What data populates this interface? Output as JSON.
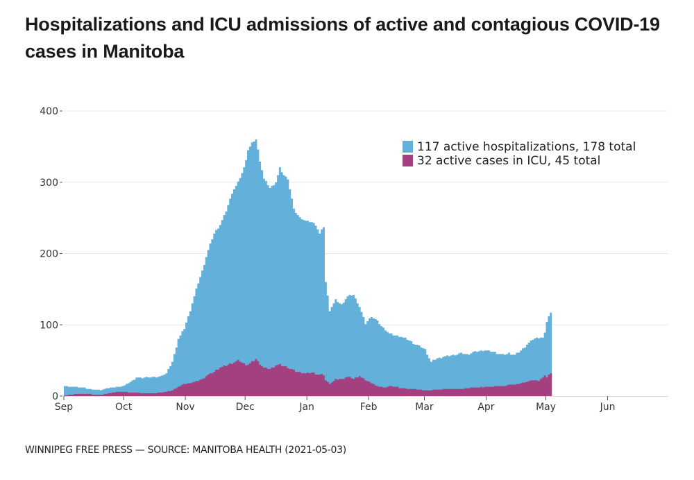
{
  "title": "Hospitalizations and ICU admissions of active and contagious COVID-19 cases in Manitoba",
  "footer": "WINNIPEG FREE PRESS — SOURCE: MANITOBA HEALTH (2021-05-03)",
  "colors": {
    "hospital": "#63b1da",
    "icu": "#a3407f",
    "grid": "#e8e8e8",
    "axis": "#555555"
  },
  "chart_data": {
    "type": "area",
    "title": "Hospitalizations and ICU admissions of active and contagious COVID-19 cases in Manitoba",
    "xlabel": "",
    "ylabel": "",
    "x_unit": "days since Sep 1, 2020",
    "xlim": [
      0,
      300
    ],
    "ylim": [
      0,
      400
    ],
    "grid": true,
    "legend_position": "top-right",
    "yticks": [
      0,
      100,
      200,
      300,
      400
    ],
    "xticks": [
      {
        "day": 0,
        "label": "Sep"
      },
      {
        "day": 30,
        "label": "Oct"
      },
      {
        "day": 61,
        "label": "Nov"
      },
      {
        "day": 91,
        "label": "Dec"
      },
      {
        "day": 122,
        "label": "Jan"
      },
      {
        "day": 153,
        "label": "Feb"
      },
      {
        "day": 181,
        "label": "Mar"
      },
      {
        "day": 212,
        "label": "Apr"
      },
      {
        "day": 242,
        "label": "May"
      },
      {
        "day": 273,
        "label": "Jun"
      }
    ],
    "series": [
      {
        "name": "117 active hospitalizations,  178 total",
        "key": "hospital",
        "x": [
          0,
          3,
          6,
          9,
          12,
          15,
          18,
          21,
          24,
          27,
          30,
          33,
          36,
          39,
          42,
          45,
          48,
          51,
          54,
          57,
          60,
          63,
          66,
          69,
          72,
          75,
          78,
          81,
          84,
          87,
          90,
          92,
          94,
          96,
          98,
          100,
          103,
          106,
          108,
          110,
          112,
          115,
          118,
          121,
          124,
          126,
          128,
          130,
          131,
          133,
          136,
          139,
          142,
          145,
          148,
          151,
          154,
          157,
          160,
          163,
          166,
          169,
          172,
          175,
          178,
          181,
          184,
          187,
          190,
          193,
          196,
          199,
          202,
          205,
          208,
          211,
          214,
          217,
          220,
          223,
          226,
          229,
          232,
          235,
          238,
          240,
          241,
          242,
          243,
          244
        ],
        "values": [
          14,
          13,
          13,
          12,
          10,
          9,
          8,
          11,
          12,
          13,
          15,
          20,
          26,
          25,
          27,
          26,
          28,
          32,
          48,
          80,
          95,
          120,
          150,
          175,
          205,
          228,
          240,
          260,
          285,
          300,
          320,
          345,
          355,
          360,
          330,
          305,
          292,
          300,
          320,
          310,
          305,
          262,
          250,
          246,
          244,
          240,
          228,
          238,
          160,
          120,
          135,
          128,
          140,
          142,
          125,
          102,
          112,
          105,
          95,
          88,
          85,
          83,
          80,
          74,
          70,
          65,
          48,
          53,
          55,
          57,
          58,
          60,
          58,
          62,
          63,
          64,
          63,
          60,
          58,
          60,
          58,
          64,
          72,
          80,
          82,
          82,
          88,
          105,
          112,
          117
        ]
      },
      {
        "name": "32 active cases in ICU,  45 total",
        "key": "icu",
        "x": [
          0,
          3,
          6,
          9,
          12,
          15,
          18,
          21,
          24,
          27,
          30,
          33,
          36,
          39,
          42,
          45,
          48,
          51,
          54,
          57,
          60,
          63,
          66,
          69,
          72,
          75,
          78,
          81,
          84,
          87,
          90,
          92,
          94,
          96,
          98,
          100,
          103,
          106,
          108,
          110,
          112,
          115,
          118,
          121,
          124,
          126,
          128,
          130,
          131,
          133,
          136,
          139,
          142,
          145,
          148,
          151,
          154,
          157,
          160,
          163,
          166,
          169,
          172,
          175,
          178,
          181,
          184,
          187,
          190,
          193,
          196,
          199,
          202,
          205,
          208,
          211,
          214,
          217,
          220,
          223,
          226,
          229,
          232,
          235,
          238,
          240,
          241,
          242,
          243,
          244
        ],
        "values": [
          1,
          2,
          3,
          3,
          3,
          2,
          2,
          3,
          5,
          6,
          6,
          5,
          5,
          4,
          4,
          4,
          5,
          6,
          8,
          13,
          17,
          18,
          20,
          24,
          30,
          34,
          40,
          43,
          46,
          50,
          45,
          44,
          48,
          52,
          45,
          40,
          38,
          43,
          44,
          42,
          40,
          36,
          33,
          32,
          33,
          31,
          30,
          30,
          22,
          17,
          23,
          24,
          27,
          24,
          28,
          22,
          18,
          14,
          12,
          14,
          13,
          11,
          10,
          10,
          9,
          8,
          8,
          9,
          10,
          10,
          10,
          10,
          11,
          12,
          12,
          13,
          13,
          14,
          14,
          16,
          16,
          18,
          20,
          22,
          22,
          26,
          28,
          26,
          30,
          32
        ]
      }
    ]
  }
}
